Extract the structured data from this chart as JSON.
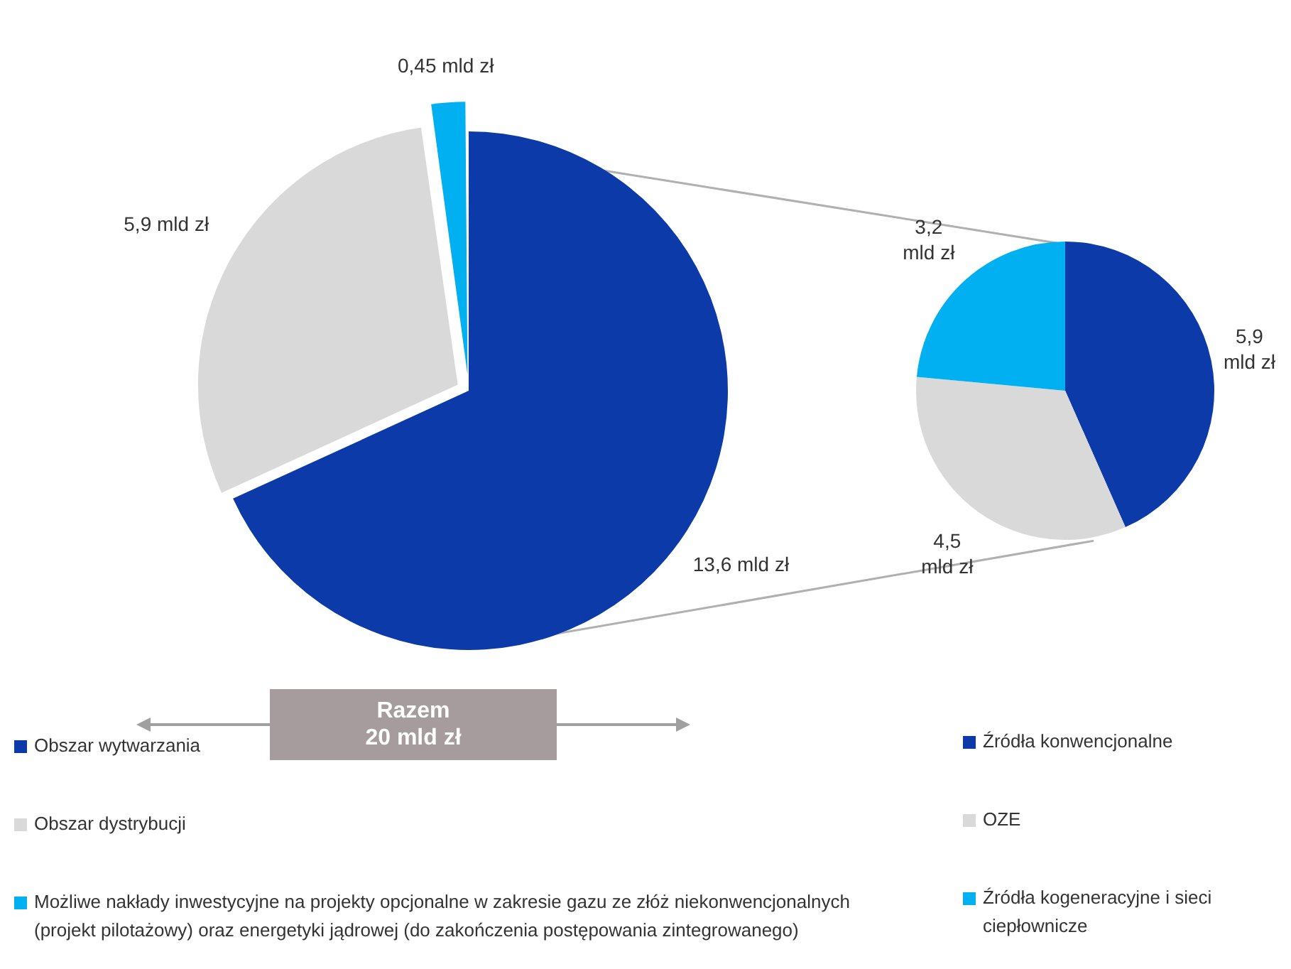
{
  "chart_data": [
    {
      "type": "pie",
      "categories": [
        "Obszar wytwarzania",
        "Obszar dystrybucji",
        "Możliwe nakłady inwestycyjne na projekty opcjonalne w zakresie gazu ze złóż niekonwencjonalnych (projekt pilotażowy) oraz energetyki jądrowej (do zakończenia postępowania zintegrowanego)"
      ],
      "values": [
        13.6,
        5.9,
        0.45
      ],
      "colors": [
        "#0d3aa9",
        "#d9d9d9",
        "#00b0f0"
      ],
      "value_labels": [
        "13,6 mld zł",
        "5,9 mld zł",
        "0,45 mld zł"
      ],
      "legend": "bottom",
      "annotations": [
        "Razem\n20 mld zł"
      ]
    },
    {
      "type": "pie",
      "categories": [
        "Źródła konwencjonalne",
        "OZE",
        "Źródła kogeneracyjne i sieci ciepłownicze"
      ],
      "values": [
        5.9,
        4.5,
        3.2
      ],
      "colors": [
        "#0d3aa9",
        "#d9d9d9",
        "#00b0f0"
      ],
      "value_labels": [
        "5,9 mld zł",
        "4,5 mld zł",
        "3,2 mld zł"
      ],
      "legend": "bottom"
    }
  ]
}
